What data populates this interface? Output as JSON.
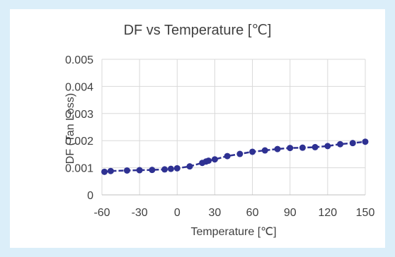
{
  "chart_data": {
    "type": "line",
    "title": "DF vs Temperature [℃]",
    "xlabel": "Temperature [℃]",
    "ylabel": "DF (Tan Loss)",
    "xlim": [
      -60,
      150
    ],
    "ylim": [
      0,
      0.005
    ],
    "xticks": [
      "-60",
      "-30",
      "0",
      "30",
      "60",
      "90",
      "120",
      "150"
    ],
    "yticks": [
      "0",
      "0.001",
      "0.002",
      "0.003",
      "0.004",
      "0.005"
    ],
    "grid": true,
    "legend": "none",
    "series": [
      {
        "color": "#2e3192",
        "marker": "circle",
        "x": [
          -58,
          -53,
          -40,
          -30,
          -20,
          -10,
          -5,
          0,
          10,
          20,
          23,
          25,
          30,
          40,
          50,
          60,
          70,
          80,
          90,
          100,
          110,
          120,
          130,
          140,
          150
        ],
        "y": [
          0.00085,
          0.00088,
          0.0009,
          0.00091,
          0.00092,
          0.00094,
          0.00096,
          0.00098,
          0.00105,
          0.00118,
          0.00123,
          0.00126,
          0.00131,
          0.00143,
          0.00151,
          0.00159,
          0.00164,
          0.00169,
          0.00173,
          0.00174,
          0.00176,
          0.0018,
          0.00187,
          0.00191,
          0.00196
        ]
      }
    ]
  }
}
